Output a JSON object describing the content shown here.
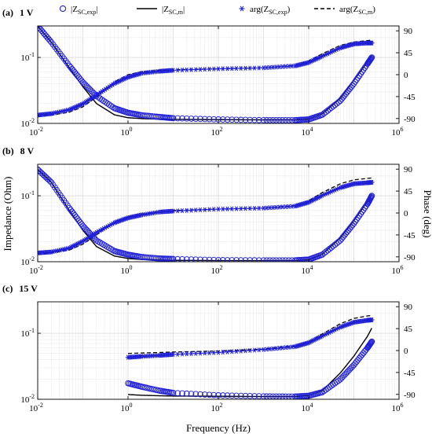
{
  "legend": {
    "items": [
      {
        "id": "zexp",
        "label": "|Z",
        "sub": "SC,exp",
        "suffix": "|",
        "style": "circle",
        "color": "#1f1fd6"
      },
      {
        "id": "zm",
        "label": "|Z",
        "sub": "SC,m",
        "suffix": "|",
        "style": "solid",
        "color": "#000000"
      },
      {
        "id": "argexp",
        "label": "arg(Z",
        "sub": "SC,exp",
        "suffix": ")",
        "style": "asterisk",
        "color": "#1f1fd6"
      },
      {
        "id": "argm",
        "label": "arg(Z",
        "sub": "SC,m",
        "suffix": ")",
        "style": "dashed",
        "color": "#000000"
      }
    ]
  },
  "axes": {
    "xlabel": "Frequency (Hz)",
    "ylabel_left": "Impedance (Ohm)",
    "ylabel_right": "Phase (deg)"
  },
  "chart_data": [
    {
      "type": "line",
      "panel": "(a)",
      "title": "1 V",
      "xscale": "log",
      "xlim": [
        0.01,
        1000000
      ],
      "yscale_left": "log",
      "ylim_left": [
        0.01,
        0.3
      ],
      "ylim_right": [
        -100,
        100
      ],
      "x_ticks": [
        "10^-2",
        "10^0",
        "10^2",
        "10^4",
        "10^6"
      ],
      "y_left_ticks": [
        "10^-2",
        "10^-1"
      ],
      "y_right_ticks": [
        "90",
        "45",
        "0",
        "-45",
        "-90"
      ],
      "grid": true,
      "series": [
        {
          "name": "|Z_SC,exp|",
          "axis": "left",
          "x": [
            0.01,
            0.02,
            0.05,
            0.1,
            0.2,
            0.5,
            1,
            2,
            5,
            10,
            100,
            1000,
            5000,
            10000,
            20000,
            50000,
            100000,
            200000,
            250000
          ],
          "y": [
            0.3,
            0.17,
            0.075,
            0.042,
            0.026,
            0.017,
            0.0145,
            0.0133,
            0.0125,
            0.012,
            0.0115,
            0.0112,
            0.0112,
            0.0115,
            0.0135,
            0.022,
            0.04,
            0.08,
            0.1
          ]
        },
        {
          "name": "|Z_SC,m|",
          "axis": "left",
          "x": [
            0.01,
            0.02,
            0.05,
            0.1,
            0.2,
            0.5,
            1,
            2,
            5,
            10,
            100,
            1000,
            5000,
            10000,
            20000,
            50000,
            100000,
            200000,
            250000
          ],
          "y": [
            0.3,
            0.17,
            0.07,
            0.036,
            0.02,
            0.0135,
            0.0122,
            0.0118,
            0.0116,
            0.0115,
            0.0114,
            0.0113,
            0.0113,
            0.0116,
            0.014,
            0.024,
            0.045,
            0.085,
            0.105
          ]
        },
        {
          "name": "arg(Z_SC,exp)",
          "axis": "right",
          "x": [
            0.01,
            0.02,
            0.05,
            0.1,
            0.2,
            0.5,
            1,
            2,
            5,
            10,
            100,
            1000,
            5000,
            10000,
            20000,
            50000,
            100000,
            200000,
            250000
          ],
          "y": [
            -83,
            -80,
            -72,
            -60,
            -42,
            -18,
            -5,
            3,
            7,
            9,
            12,
            14,
            18,
            25,
            38,
            55,
            63,
            65,
            65
          ]
        },
        {
          "name": "arg(Z_SC,m)",
          "axis": "right",
          "x": [
            0.01,
            0.02,
            0.05,
            0.1,
            0.2,
            0.5,
            1,
            2,
            5,
            10,
            100,
            1000,
            5000,
            10000,
            20000,
            50000,
            100000,
            200000,
            250000
          ],
          "y": [
            -85,
            -83,
            -77,
            -66,
            -46,
            -15,
            0,
            6,
            9,
            10,
            12,
            14,
            19,
            28,
            43,
            60,
            67,
            70,
            71
          ]
        }
      ]
    },
    {
      "type": "line",
      "panel": "(b)",
      "title": "8 V",
      "xscale": "log",
      "xlim": [
        0.01,
        1000000
      ],
      "yscale_left": "log",
      "ylim_left": [
        0.01,
        0.3
      ],
      "ylim_right": [
        -100,
        100
      ],
      "x_ticks": [
        "10^-2",
        "10^0",
        "10^2",
        "10^4",
        "10^6"
      ],
      "y_left_ticks": [
        "10^-2",
        "10^-1"
      ],
      "y_right_ticks": [
        "90",
        "45",
        "0",
        "-45",
        "-90"
      ],
      "grid": true,
      "series": [
        {
          "name": "|Z_SC,exp|",
          "axis": "left",
          "x": [
            0.01,
            0.02,
            0.05,
            0.1,
            0.2,
            0.5,
            1,
            2,
            5,
            10,
            100,
            1000,
            5000,
            10000,
            20000,
            50000,
            100000,
            200000,
            250000
          ],
          "y": [
            0.25,
            0.16,
            0.065,
            0.035,
            0.021,
            0.0145,
            0.0128,
            0.0118,
            0.0112,
            0.011,
            0.0106,
            0.0105,
            0.0105,
            0.0108,
            0.0128,
            0.021,
            0.038,
            0.075,
            0.1
          ]
        },
        {
          "name": "|Z_SC,m|",
          "axis": "left",
          "x": [
            0.01,
            0.02,
            0.05,
            0.1,
            0.2,
            0.5,
            1,
            2,
            5,
            10,
            100,
            1000,
            5000,
            10000,
            20000,
            50000,
            100000,
            200000,
            250000
          ],
          "y": [
            0.25,
            0.16,
            0.06,
            0.03,
            0.017,
            0.0122,
            0.0112,
            0.0108,
            0.0106,
            0.0105,
            0.0104,
            0.0104,
            0.0104,
            0.0107,
            0.013,
            0.023,
            0.042,
            0.082,
            0.105
          ]
        },
        {
          "name": "arg(Z_SC,exp)",
          "axis": "right",
          "x": [
            0.01,
            0.02,
            0.05,
            0.1,
            0.2,
            0.5,
            1,
            2,
            5,
            10,
            100,
            1000,
            5000,
            10000,
            20000,
            50000,
            100000,
            200000,
            250000
          ],
          "y": [
            -82,
            -80,
            -72,
            -58,
            -40,
            -20,
            -10,
            -4,
            2,
            4,
            8,
            10,
            14,
            22,
            36,
            52,
            60,
            62,
            63
          ]
        },
        {
          "name": "arg(Z_SC,m)",
          "axis": "right",
          "x": [
            0.01,
            0.02,
            0.05,
            0.1,
            0.2,
            0.5,
            1,
            2,
            5,
            10,
            100,
            1000,
            5000,
            10000,
            20000,
            50000,
            100000,
            200000,
            250000
          ],
          "y": [
            -84,
            -82,
            -76,
            -64,
            -45,
            -18,
            -8,
            -2,
            3,
            5,
            8,
            10,
            15,
            25,
            42,
            60,
            68,
            71,
            72
          ]
        }
      ]
    },
    {
      "type": "line",
      "panel": "(c)",
      "title": "15 V",
      "xscale": "log",
      "xlim": [
        0.01,
        1000000
      ],
      "yscale_left": "log",
      "ylim_left": [
        0.01,
        0.3
      ],
      "ylim_right": [
        -100,
        100
      ],
      "x_ticks": [
        "10^-2",
        "10^0",
        "10^2",
        "10^4",
        "10^6"
      ],
      "y_left_ticks": [
        "10^-2",
        "10^-1"
      ],
      "y_right_ticks": [
        "90",
        "45",
        "0",
        "-45",
        "-90"
      ],
      "grid": true,
      "series": [
        {
          "name": "|Z_SC,exp|",
          "axis": "left",
          "x": [
            1,
            2,
            5,
            10,
            100,
            1000,
            5000,
            10000,
            20000,
            50000,
            100000,
            200000,
            250000
          ],
          "y": [
            0.0175,
            0.0155,
            0.0135,
            0.0125,
            0.0115,
            0.0111,
            0.011,
            0.0113,
            0.0128,
            0.02,
            0.033,
            0.06,
            0.075
          ]
        },
        {
          "name": "|Z_SC,m|",
          "axis": "left",
          "x": [
            1,
            2,
            5,
            10,
            100,
            1000,
            5000,
            10000,
            20000,
            50000,
            100000,
            200000,
            250000
          ],
          "y": [
            0.0118,
            0.0115,
            0.0113,
            0.0112,
            0.0111,
            0.011,
            0.011,
            0.0114,
            0.0135,
            0.025,
            0.045,
            0.09,
            0.12
          ]
        },
        {
          "name": "arg(Z_SC,exp)",
          "axis": "right",
          "x": [
            1,
            2,
            5,
            10,
            100,
            1000,
            5000,
            10000,
            20000,
            50000,
            100000,
            200000,
            250000
          ],
          "y": [
            -14,
            -12,
            -10,
            -8,
            -4,
            2,
            8,
            16,
            30,
            48,
            58,
            62,
            63
          ]
        },
        {
          "name": "arg(Z_SC,m)",
          "axis": "right",
          "x": [
            1,
            2,
            5,
            10,
            100,
            1000,
            5000,
            10000,
            20000,
            50000,
            100000,
            200000,
            250000
          ],
          "y": [
            -6,
            -5,
            -4,
            -3,
            -1,
            3,
            10,
            18,
            34,
            55,
            66,
            71,
            72
          ]
        }
      ]
    }
  ]
}
